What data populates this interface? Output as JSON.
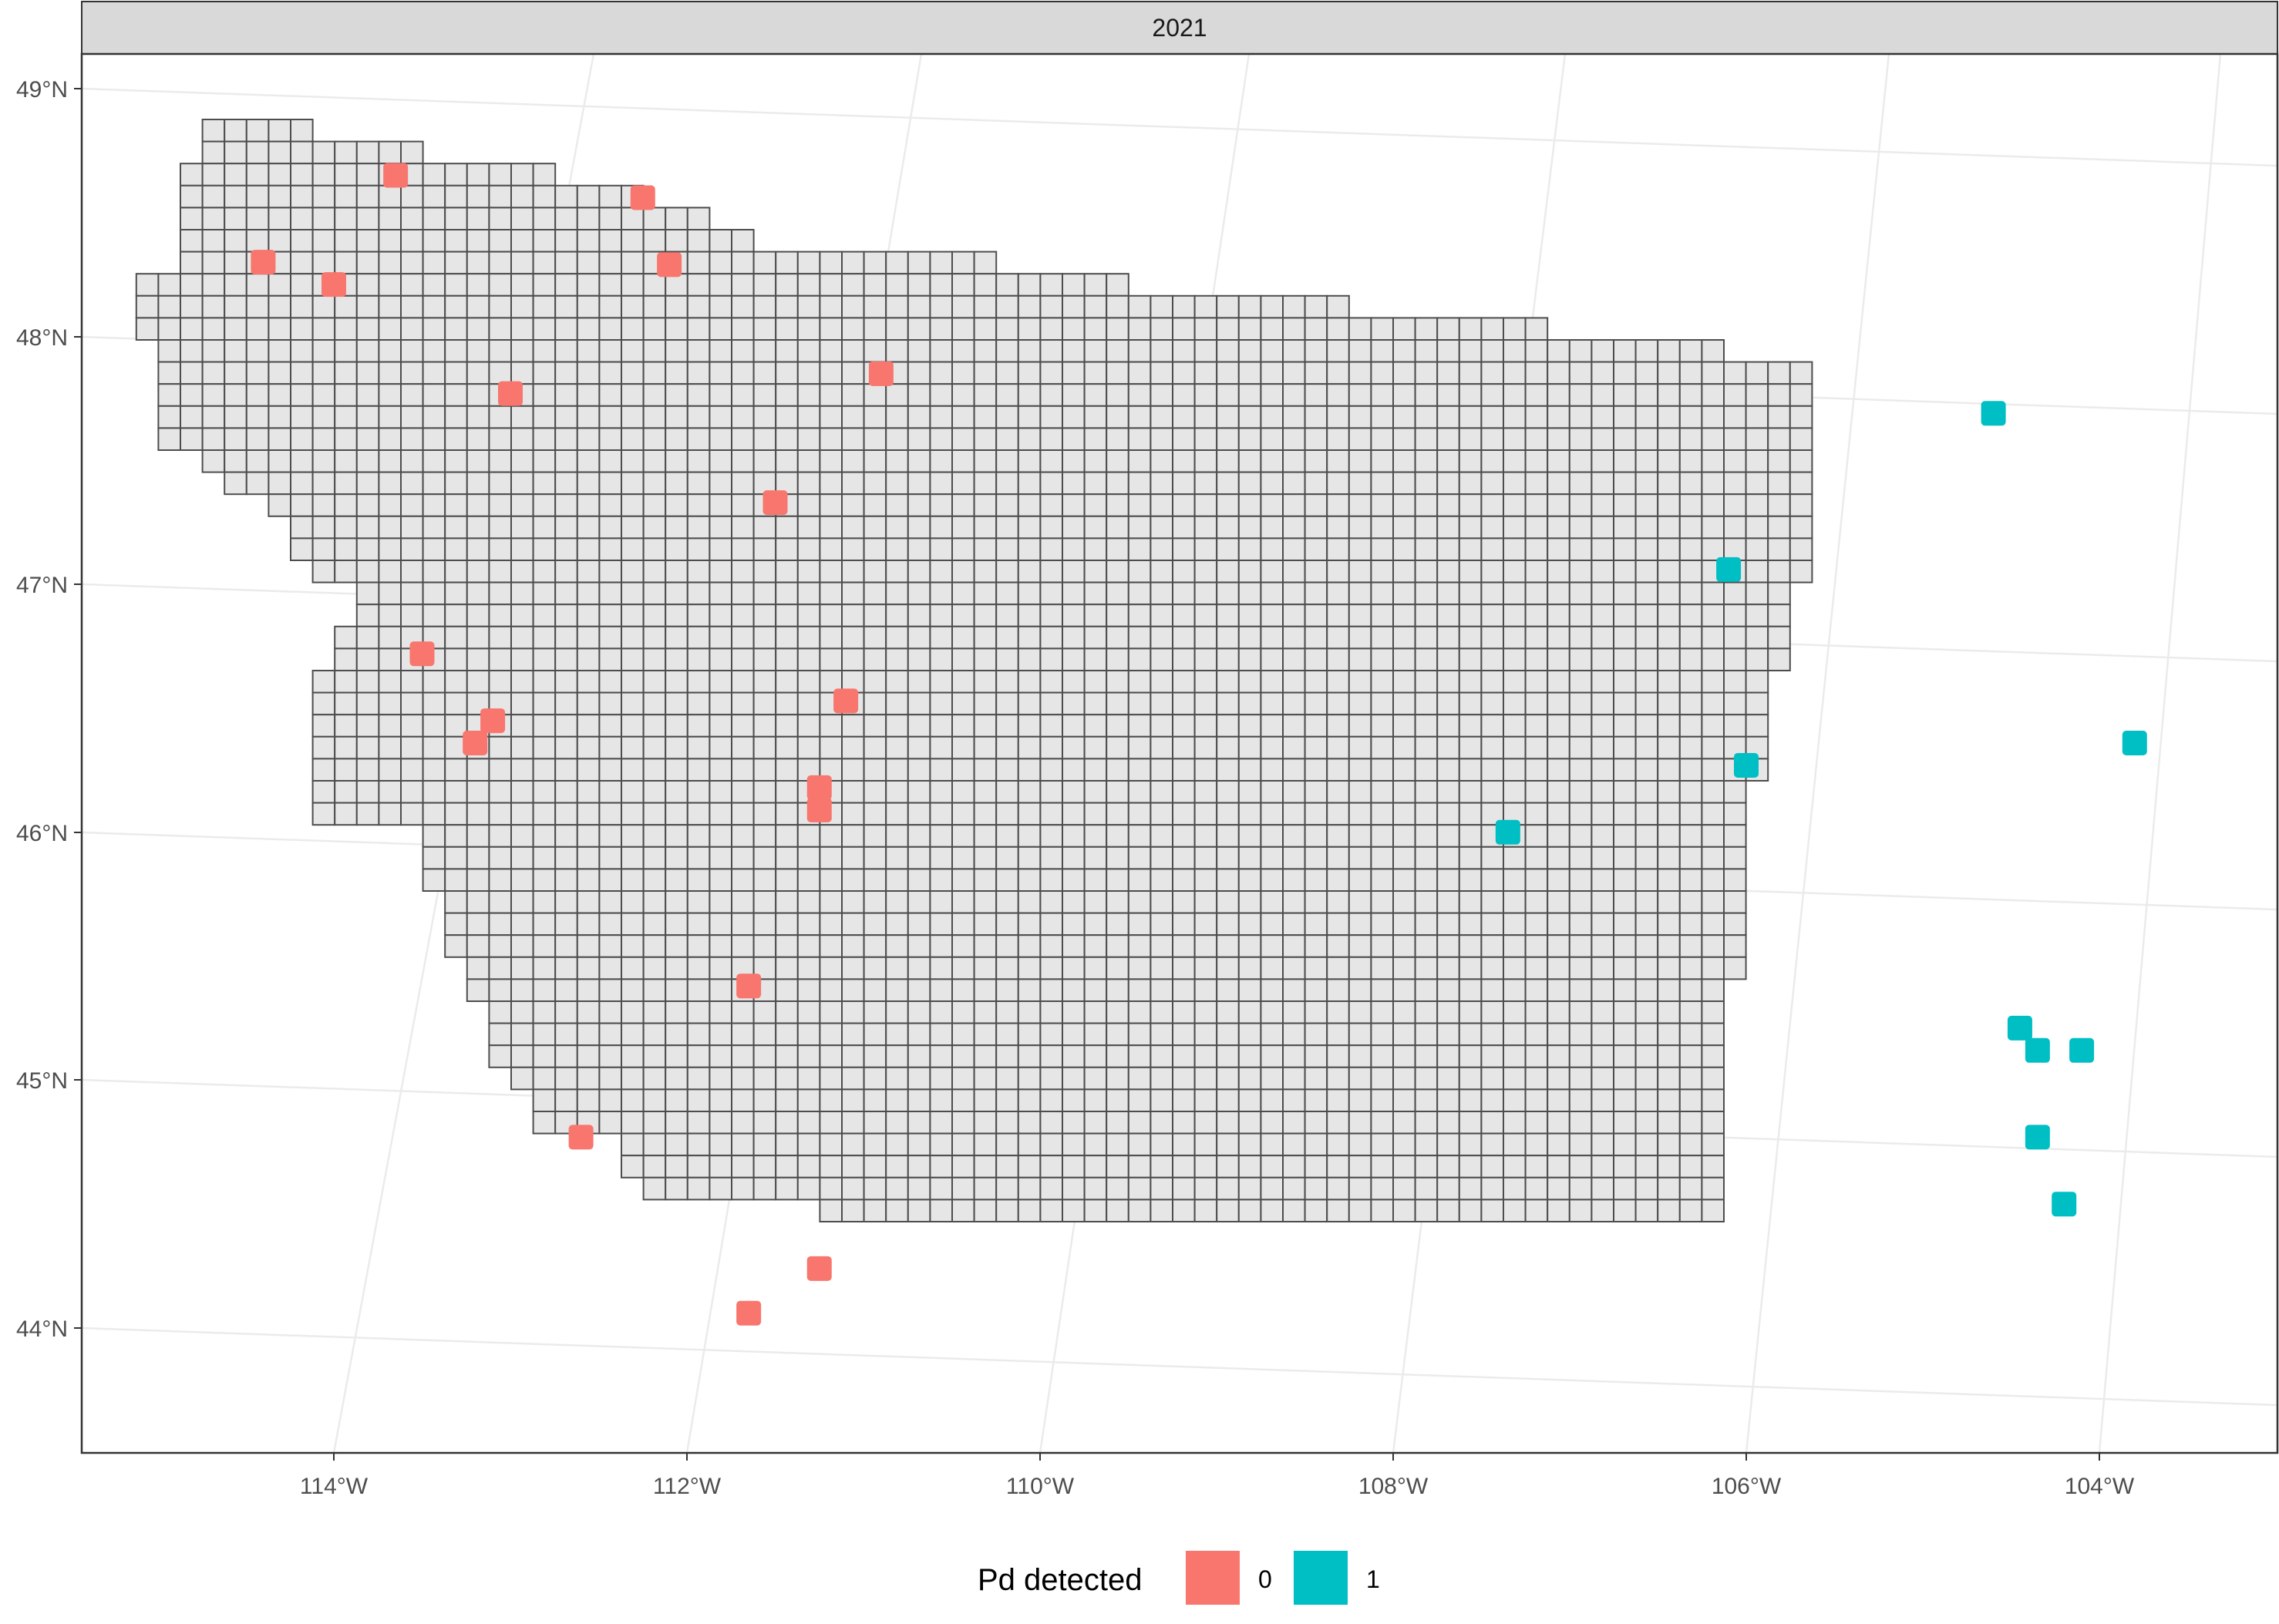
{
  "facet": {
    "label": "2021"
  },
  "legend": {
    "title": "Pd detected",
    "items": [
      {
        "label": "0",
        "color": "#F8766D"
      },
      {
        "label": "1",
        "color": "#00BFC4"
      }
    ]
  },
  "axes": {
    "lat_ticks": [
      "49°N",
      "48°N",
      "47°N",
      "46°N",
      "45°N",
      "44°N"
    ],
    "lon_ticks": [
      "114°W",
      "112°W",
      "110°W",
      "108°W",
      "106°W",
      "104°W"
    ]
  },
  "chart_data": {
    "type": "scatter",
    "title": "",
    "xlabel": "",
    "ylabel": "",
    "xlim": [
      -115.4,
      -102.9
    ],
    "ylim": [
      43.55,
      49.25
    ],
    "grid": true,
    "legend_position": "bottom",
    "base_layer": "grid of sampling cells (light grey fill, dark grey outline)",
    "series": [
      {
        "name": "0",
        "color": "#F8766D",
        "points": [
          {
            "lon": -113.65,
            "lat": 48.65
          },
          {
            "lon": -112.25,
            "lat": 48.56
          },
          {
            "lon": -114.4,
            "lat": 48.3
          },
          {
            "lon": -114.0,
            "lat": 48.21
          },
          {
            "lon": -112.1,
            "lat": 48.29
          },
          {
            "lon": -110.9,
            "lat": 47.85
          },
          {
            "lon": -113.0,
            "lat": 47.77
          },
          {
            "lon": -111.5,
            "lat": 47.33
          },
          {
            "lon": -113.5,
            "lat": 46.72
          },
          {
            "lon": -111.1,
            "lat": 46.53
          },
          {
            "lon": -113.1,
            "lat": 46.45
          },
          {
            "lon": -113.2,
            "lat": 46.36
          },
          {
            "lon": -111.25,
            "lat": 46.18
          },
          {
            "lon": -111.25,
            "lat": 46.09
          },
          {
            "lon": -111.65,
            "lat": 45.38
          },
          {
            "lon": -112.6,
            "lat": 44.77
          },
          {
            "lon": -111.25,
            "lat": 44.24
          },
          {
            "lon": -111.65,
            "lat": 44.06
          }
        ]
      },
      {
        "name": "1",
        "color": "#00BFC4",
        "points": [
          {
            "lon": -104.6,
            "lat": 47.69
          },
          {
            "lon": -106.1,
            "lat": 47.06
          },
          {
            "lon": -103.8,
            "lat": 46.36
          },
          {
            "lon": -106.0,
            "lat": 46.27
          },
          {
            "lon": -107.35,
            "lat": 46.0
          },
          {
            "lon": -104.45,
            "lat": 45.21
          },
          {
            "lon": -104.35,
            "lat": 45.12
          },
          {
            "lon": -104.1,
            "lat": 45.12
          },
          {
            "lon": -104.35,
            "lat": 44.77
          },
          {
            "lon": -104.2,
            "lat": 44.5
          }
        ]
      }
    ]
  }
}
